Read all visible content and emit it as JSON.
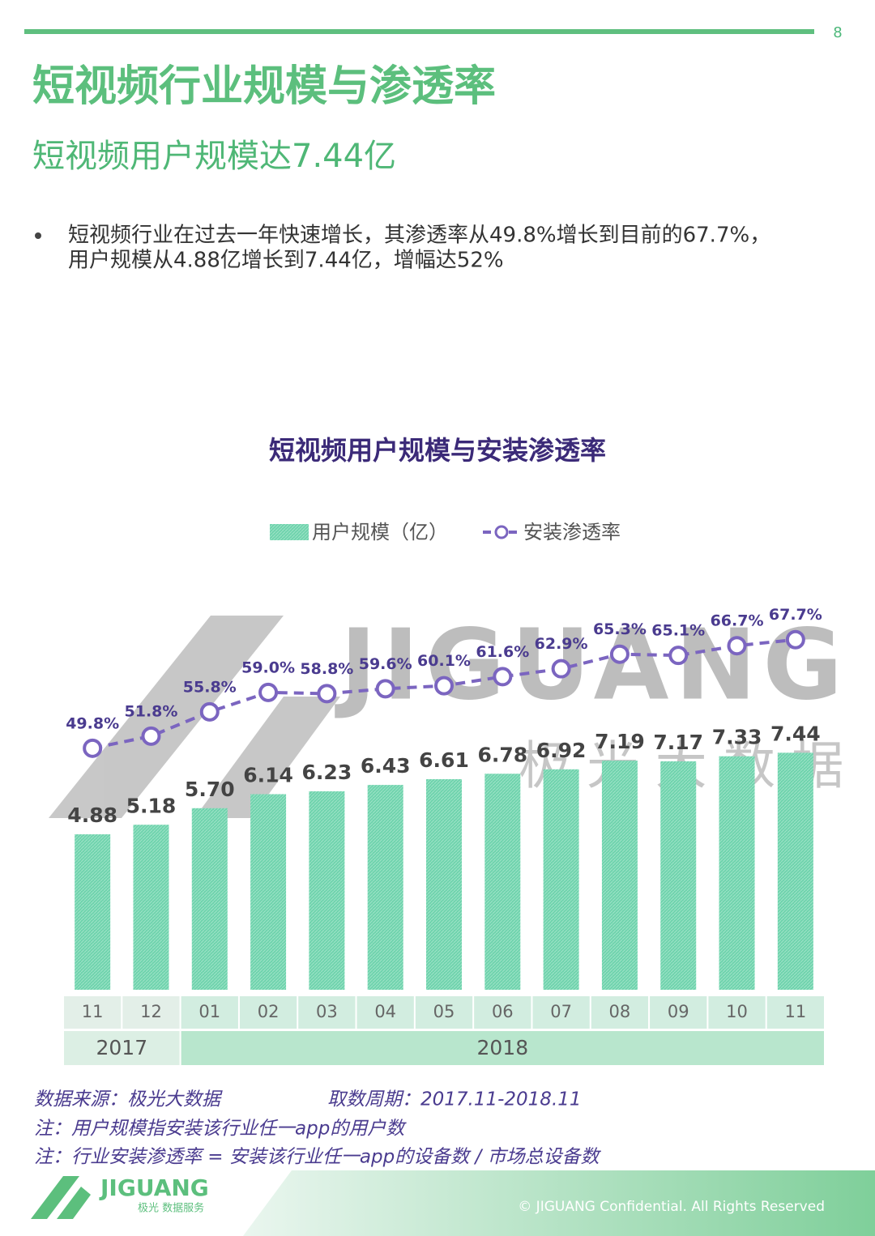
{
  "page_number": "8",
  "header": {
    "title": "短视频行业规模与渗透率",
    "subtitle": "短视频用户规模达7.44亿"
  },
  "bullet": [
    "短视频行业在过去一年快速增长，其渗透率从49.8%增长到目前的67.7%，",
    "用户规模从4.88亿增长到7.44亿，增幅达52%"
  ],
  "watermark": {
    "brand": "JIGUANG",
    "name": "极 光 大 数 据"
  },
  "chart_data": {
    "type": "bar",
    "title": "短视频用户规模与安装渗透率",
    "categories": [
      "11",
      "12",
      "01",
      "02",
      "03",
      "04",
      "05",
      "06",
      "07",
      "08",
      "09",
      "10",
      "11"
    ],
    "year_labels": [
      "2017",
      null,
      "2018",
      null,
      null,
      null,
      null,
      null,
      null,
      null,
      null,
      null,
      null
    ],
    "ylim": [
      0,
      12
    ],
    "y2lim": [
      10,
      73
    ],
    "series": [
      {
        "name": "用户规模（亿）",
        "color": "#6fd3ad",
        "values": [
          4.88,
          5.18,
          5.7,
          6.14,
          6.23,
          6.43,
          6.61,
          6.78,
          6.92,
          7.19,
          7.17,
          7.33,
          7.44
        ],
        "value_labels": [
          "4.88",
          "5.18",
          "5.70",
          "6.14",
          "6.23",
          "6.43",
          "6.61",
          "6.78",
          "6.92",
          "7.19",
          "7.17",
          "7.33",
          "7.44"
        ]
      },
      {
        "name": "安装渗透率",
        "type": "line",
        "axis": "y2",
        "color": "#7b65c0",
        "values": [
          49.8,
          51.8,
          55.8,
          59.0,
          58.8,
          59.6,
          60.1,
          61.6,
          62.9,
          65.3,
          65.1,
          66.7,
          67.7
        ],
        "value_labels": [
          "49.8%",
          "51.8%",
          "55.8%",
          "59.0%",
          "58.8%",
          "59.6%",
          "60.1%",
          "61.6%",
          "62.9%",
          "65.3%",
          "65.1%",
          "66.7%",
          "67.7%"
        ]
      }
    ]
  },
  "notes": {
    "source": "数据来源：极光大数据",
    "period": "取数周期：2017.11-2018.11",
    "note1": "注：用户规模指安装该行业任一app的用户数",
    "note2": "注：行业安装渗透率 = 安装该行业任一app的设备数 / 市场总设备数"
  },
  "footer": {
    "logo": "JIGUANG",
    "logo_sub": "极光 数据服务",
    "copyright": "© JIGUANG Confidential. All Rights Reserved"
  }
}
